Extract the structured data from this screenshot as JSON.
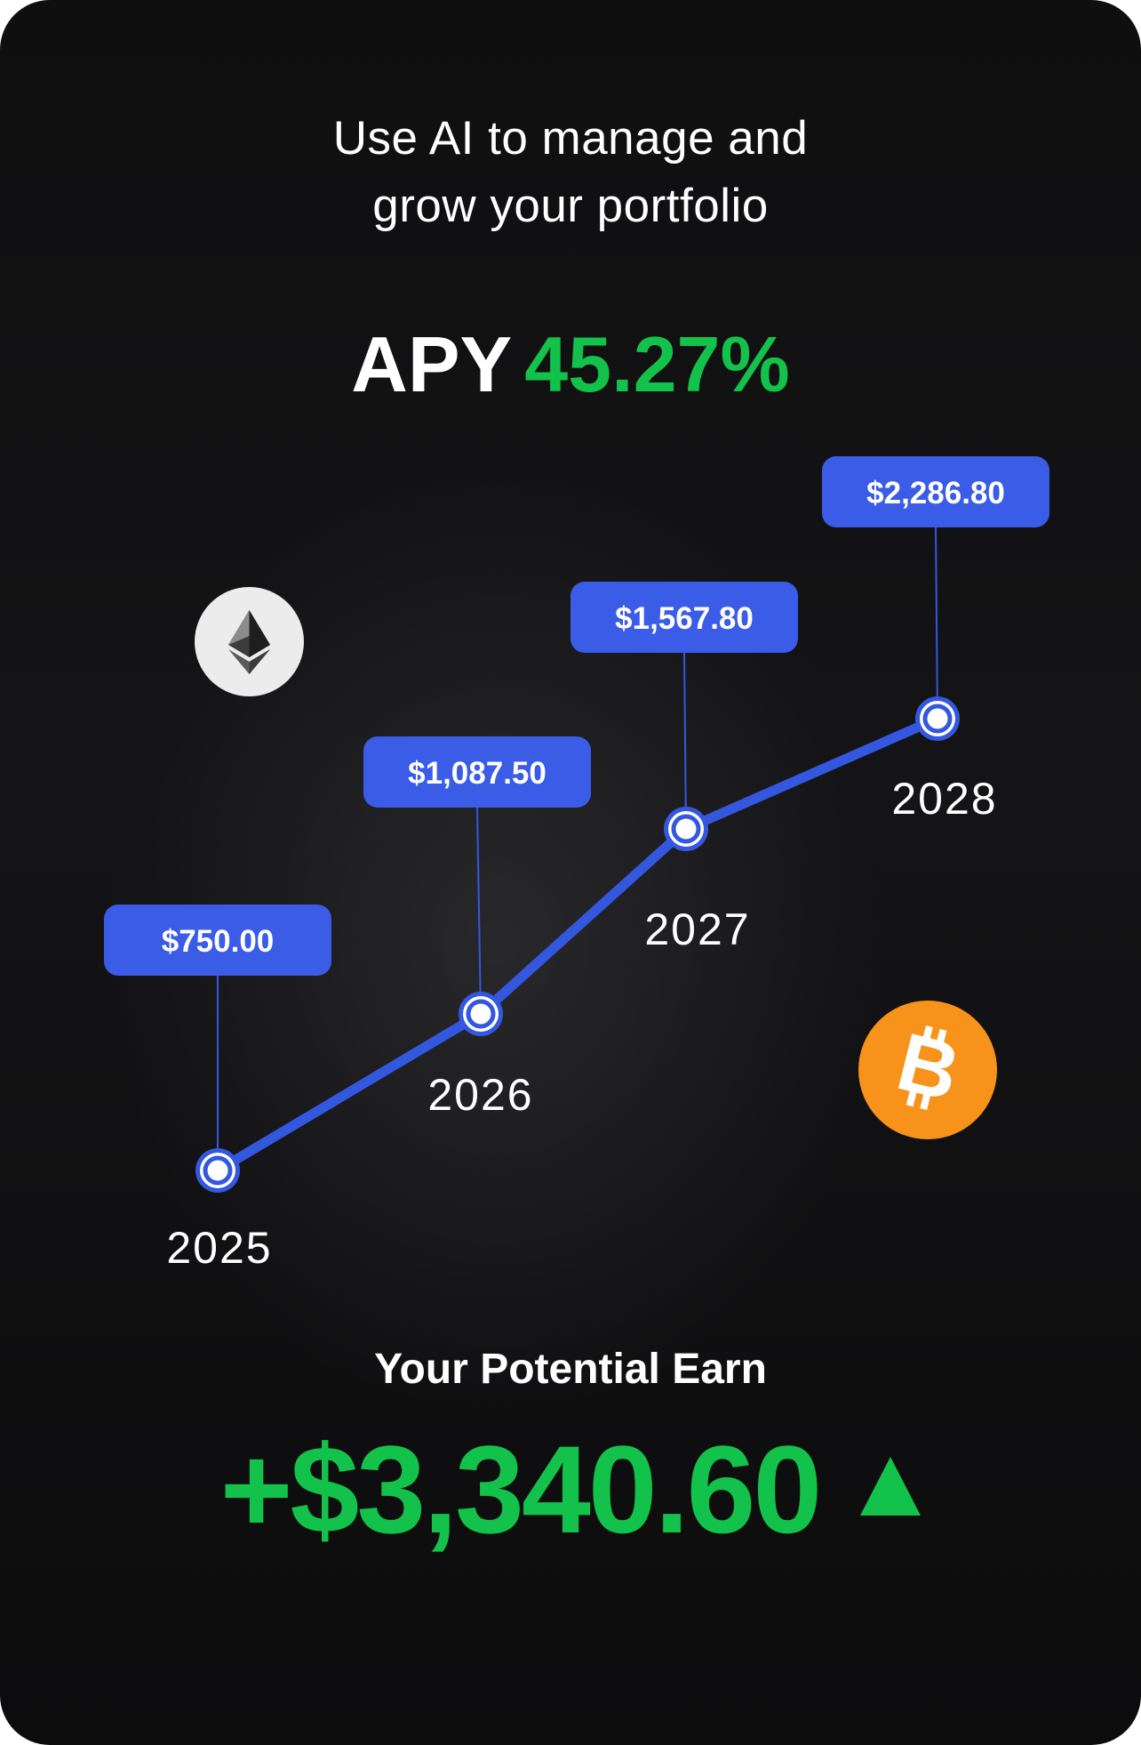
{
  "headline": {
    "line1": "Use AI to manage and",
    "line2": "grow your portfolio"
  },
  "apy": {
    "label": "APY",
    "value": "45.27%"
  },
  "chart_data": {
    "type": "line",
    "x": [
      "2025",
      "2026",
      "2027",
      "2028"
    ],
    "series": [
      {
        "values": [
          750.0,
          1087.5,
          1567.8,
          2286.8
        ],
        "labels": [
          "$750.00",
          "$1,087.50",
          "$1,567.80",
          "$2,286.80"
        ]
      }
    ],
    "line_color": "#3457e0",
    "label_bg": "#3a5ce6",
    "point_fill": "#ffffff"
  },
  "coins": [
    {
      "name": "ethereum",
      "icon": "ethereum-icon",
      "bg": "#ececec"
    },
    {
      "name": "bitcoin",
      "icon": "bitcoin-icon",
      "bg": "#f7931a"
    }
  ],
  "earn": {
    "label": "Your Potential Earn",
    "value": "+$3,340.60",
    "trend_icon": "up-triangle-icon",
    "color": "#12c24a"
  }
}
